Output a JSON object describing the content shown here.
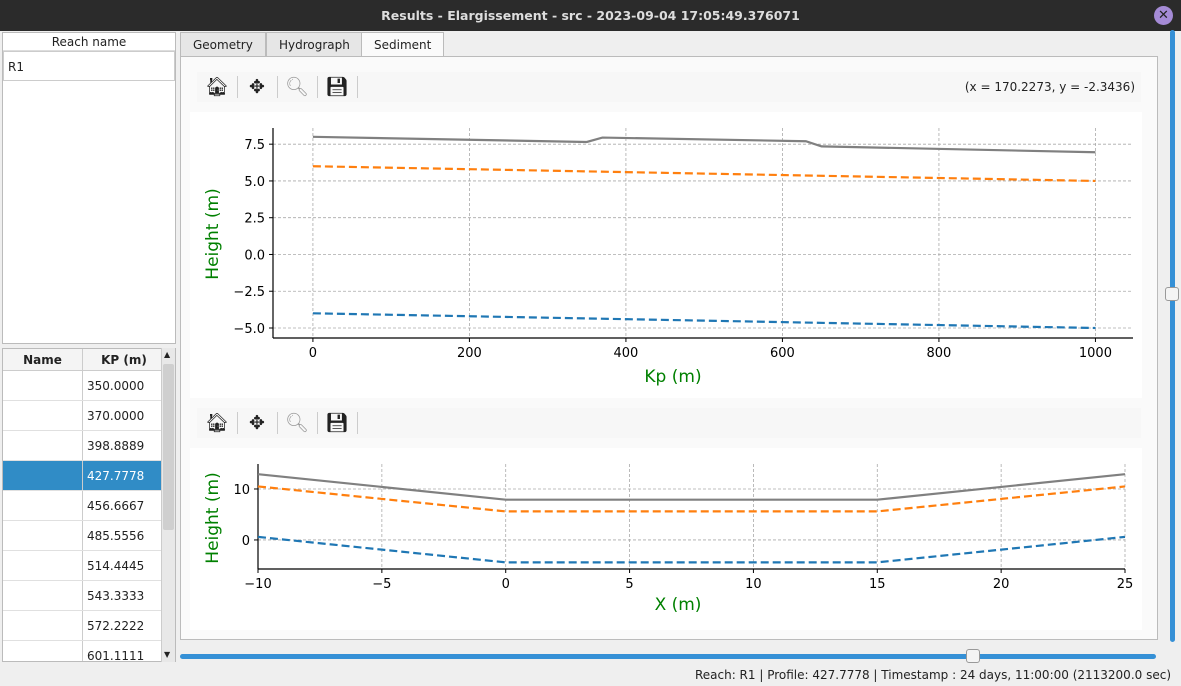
{
  "window": {
    "title": "Results - Elargissement - src - 2023-09-04 17:05:49.376071",
    "close_icon": "close-icon"
  },
  "reach_list": {
    "header": "Reach name",
    "items": [
      "R1"
    ]
  },
  "profile_table": {
    "headers": [
      "Name",
      "KP (m)"
    ],
    "rows": [
      {
        "name": "",
        "kp": "350.0000"
      },
      {
        "name": "",
        "kp": "370.0000"
      },
      {
        "name": "",
        "kp": "398.8889"
      },
      {
        "name": "",
        "kp": "427.7778",
        "selected": true
      },
      {
        "name": "",
        "kp": "456.6667"
      },
      {
        "name": "",
        "kp": "485.5556"
      },
      {
        "name": "",
        "kp": "514.4445"
      },
      {
        "name": "",
        "kp": "543.3333"
      },
      {
        "name": "",
        "kp": "572.2222"
      },
      {
        "name": "",
        "kp": "601.1111"
      }
    ]
  },
  "tabs": [
    {
      "label": "Geometry"
    },
    {
      "label": "Hydrograph"
    },
    {
      "label": "Sediment",
      "active": true
    }
  ],
  "toolbar": {
    "icons": [
      "home-icon",
      "pan-icon",
      "zoom-icon",
      "save-icon"
    ],
    "coords": "(x = 170.2273,   y = -2.3436)"
  },
  "status": "Reach: R1 | Profile: 427.7778 | Timestamp : 24 days, 11:00:00 (2113200.0 sec)",
  "colors": {
    "accent": "#308cc6",
    "label": "#008000",
    "gray": "#808080",
    "orange": "#ff7f0e",
    "blue": "#1f77b4"
  },
  "slider": {
    "time_fraction": 0.81,
    "vertical_fraction": 0.42
  },
  "chart_data": [
    {
      "type": "line",
      "xlabel": "Kp (m)",
      "ylabel": "Height (m)",
      "xlim": [
        -51,
        1048
      ],
      "ylim": [
        -5.68,
        8.6
      ],
      "grid": true,
      "xticks": [
        "0",
        "200",
        "400",
        "600",
        "800",
        "1000"
      ],
      "xtickvals": [
        0,
        200,
        400,
        600,
        800,
        1000
      ],
      "yticks": [
        "7.5",
        "5.0",
        "2.5",
        "0.0",
        "−2.5",
        "−5.0"
      ],
      "ytickvals": [
        7.5,
        5,
        2.5,
        0,
        -2.5,
        -5
      ],
      "series": [
        {
          "color": "#808080",
          "dash": false,
          "x": [
            0,
            350,
            370,
            630,
            650,
            1000
          ],
          "y": [
            8.0,
            7.65,
            7.95,
            7.7,
            7.35,
            6.95
          ]
        },
        {
          "color": "#ff7f0e",
          "dash": true,
          "x": [
            0,
            1000
          ],
          "y": [
            6.0,
            5.0
          ]
        },
        {
          "color": "#1f77b4",
          "dash": true,
          "x": [
            0,
            1000
          ],
          "y": [
            -4.0,
            -5.0
          ]
        }
      ]
    },
    {
      "type": "line",
      "xlabel": "X (m)",
      "ylabel": "Height (m)",
      "xlim": [
        -10,
        25
      ],
      "ylim": [
        -5.7,
        14.9
      ],
      "grid": true,
      "xticks": [
        "−10",
        "−5",
        "0",
        "5",
        "10",
        "15",
        "20",
        "25"
      ],
      "xtickvals": [
        -10,
        -5,
        0,
        5,
        10,
        15,
        20,
        25
      ],
      "yticks": [
        "10",
        "0"
      ],
      "ytickvals": [
        10,
        0
      ],
      "series": [
        {
          "color": "#808080",
          "dash": false,
          "x": [
            -10,
            0,
            15,
            25
          ],
          "y": [
            12.9,
            7.9,
            7.9,
            12.9
          ]
        },
        {
          "color": "#ff7f0e",
          "dash": true,
          "x": [
            -10,
            0,
            15,
            25
          ],
          "y": [
            10.5,
            5.6,
            5.6,
            10.5
          ]
        },
        {
          "color": "#1f77b4",
          "dash": true,
          "x": [
            -10,
            0,
            15,
            25
          ],
          "y": [
            0.6,
            -4.4,
            -4.4,
            0.6
          ]
        }
      ]
    }
  ]
}
